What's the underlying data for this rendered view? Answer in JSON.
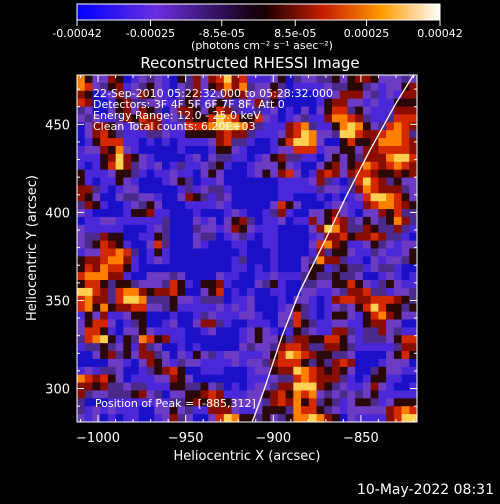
{
  "colorbar": {
    "ticks": [
      {
        "value": -0.00042,
        "label": "-0.00042"
      },
      {
        "value": -0.00025,
        "label": "-0.00025"
      },
      {
        "value": -8.5e-05,
        "label": "-8.5e-05"
      },
      {
        "value": 8.5e-05,
        "label": "8.5e-05"
      },
      {
        "value": 0.00025,
        "label": "0.00025"
      },
      {
        "value": 0.00042,
        "label": "0.00042"
      }
    ],
    "range": [
      -0.00042,
      0.00042
    ],
    "unit_label": "(photons cm⁻² s⁻¹ asec⁻²)",
    "colors": [
      "#0000ff",
      "#7b2fd6",
      "#000000",
      "#c81e00",
      "#ff9a00",
      "#ffffff"
    ]
  },
  "chart_data": {
    "type": "heatmap",
    "title": "Reconstructed RHESSI Image",
    "xlabel": "Heliocentric X (arcsec)",
    "ylabel": "Heliocentric Y (arcsec)",
    "xlim": [
      -1012,
      -818
    ],
    "ylim": [
      281,
      478
    ],
    "xticks": [
      {
        "value": -1000,
        "label": "−1000"
      },
      {
        "value": -950,
        "label": "−950"
      },
      {
        "value": -900,
        "label": "−900"
      },
      {
        "value": -850,
        "label": "−850"
      }
    ],
    "yticks": [
      {
        "value": 300,
        "label": "300"
      },
      {
        "value": 350,
        "label": "350"
      },
      {
        "value": 400,
        "label": "400"
      },
      {
        "value": 450,
        "label": "450"
      }
    ],
    "annotations": [
      "22-Sep-2010 05:22:32.000 to 05:28:32.000",
      "Detectors: 3F 4F 5F 6F 7F 8F, Att 0",
      "Energy Range: 12.0 - 25.0 keV",
      "Clean     Total counts: 6.20E+03"
    ],
    "peak_label": "Position of Peak = [-885,312]",
    "peak": [
      -885,
      312
    ],
    "limb": [
      [
        -912,
        281
      ],
      [
        -905,
        300
      ],
      [
        -895,
        330
      ],
      [
        -885,
        355
      ],
      [
        -870,
        385
      ],
      [
        -858,
        410
      ],
      [
        -845,
        435
      ],
      [
        -830,
        462
      ],
      [
        -820,
        478
      ]
    ]
  },
  "footer": {
    "timestamp": "10-May-2022 08:31"
  }
}
